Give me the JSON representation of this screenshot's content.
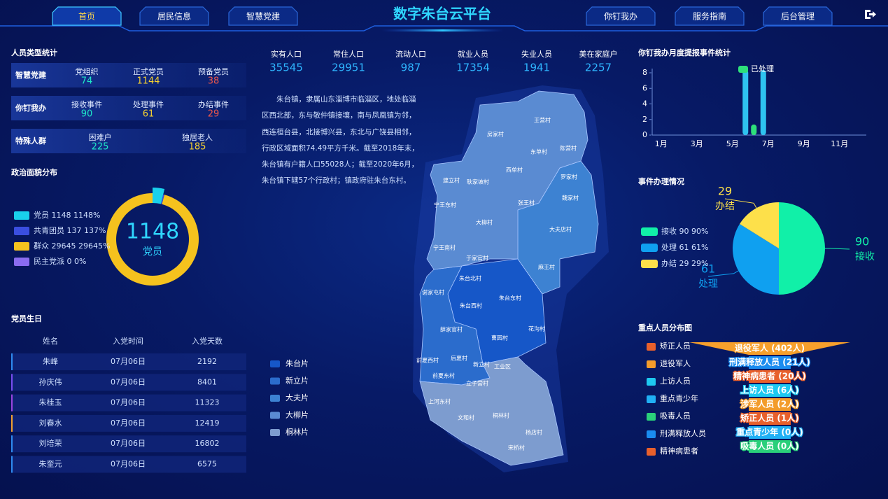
{
  "nav": {
    "left": [
      "首页",
      "居民信息",
      "智慧党建"
    ],
    "right": [
      "你钉我办",
      "服务指南",
      "后台管理"
    ]
  },
  "title": "数字朱台云平台",
  "person_stats": {
    "title": "人员类型统计",
    "rows": [
      {
        "label": "智慧党建",
        "items": [
          {
            "name": "党组织",
            "value": 74
          },
          {
            "name": "正式党员",
            "value": 1144
          },
          {
            "name": "预备党员",
            "value": 38
          }
        ]
      },
      {
        "label": "你钉我办",
        "items": [
          {
            "name": "接收事件",
            "value": 90
          },
          {
            "name": "处理事件",
            "value": 61
          },
          {
            "name": "办结事件",
            "value": 29
          }
        ]
      },
      {
        "label": "特殊人群",
        "items": [
          {
            "name": "困难户",
            "value": 225
          },
          {
            "name": "独居老人",
            "value": 185
          }
        ]
      }
    ]
  },
  "political": {
    "title": "政治面貌分布",
    "chart": {
      "type": "donut",
      "categories": [
        "党员",
        "共青团员",
        "群众",
        "民主党派"
      ],
      "values": [
        1148,
        137,
        29645,
        0
      ],
      "value_labels": [
        "1148%",
        "137%",
        "29645%",
        "0%"
      ],
      "colors": [
        "#19d0ec",
        "#3a4ee0",
        "#f5c21e",
        "#8a6cf0"
      ]
    }
  },
  "birthday": {
    "title": "党员生日",
    "columns": [
      "姓名",
      "入党时间",
      "入党天数"
    ],
    "rows": [
      [
        "朱峰",
        "07月06日",
        2192
      ],
      [
        "孙庆伟",
        "07月06日",
        8401
      ],
      [
        "朱桂玉",
        "07月06日",
        11323
      ],
      [
        "刘春水",
        "07月06日",
        12419
      ],
      [
        "刘培荣",
        "07月06日",
        16802
      ],
      [
        "朱奎元",
        "07月06日",
        6575
      ]
    ]
  },
  "population": [
    {
      "name": "实有人口",
      "value": 35545
    },
    {
      "name": "常住人口",
      "value": 29951
    },
    {
      "name": "流动人口",
      "value": 987
    },
    {
      "name": "就业人员",
      "value": 17354
    },
    {
      "name": "失业人员",
      "value": 1941
    },
    {
      "name": "美在家庭户",
      "value": 2257
    }
  ],
  "intro": "朱台镇，隶属山东淄博市临淄区，地处临淄区西北部，东与敬仲镇接壤，南与凤凰镇为邻，西连桓台县，北接博兴县，东北与广饶县相邻，行政区域面积74.49平方千米。截至2018年末，朱台镇有户籍人口55028人；截至2020年6月，朱台镇下辖57个行政村；镇政府驻朱台东村。",
  "map": {
    "legend": [
      {
        "name": "朱台片",
        "color": "#1657c8"
      },
      {
        "name": "新立片",
        "color": "#2b6ccc"
      },
      {
        "name": "大夫片",
        "color": "#3d82d2"
      },
      {
        "name": "大柳片",
        "color": "#5a8bd2"
      },
      {
        "name": "桐林片",
        "color": "#7d9ccf"
      }
    ],
    "villages": [
      "王营村",
      "房家村",
      "东单村",
      "陈营村",
      "建立村",
      "耿家坡村",
      "西单村",
      "罗家村",
      "宁王东村",
      "张王村",
      "魏家村",
      "大柳村",
      "大夫店村",
      "宁王南村",
      "于家官村",
      "麻王村",
      "朱台北村",
      "谢家屯村",
      "朱台西村",
      "朱台东村",
      "薛家官村",
      "花沟村",
      "曹园村",
      "前夏西村",
      "后夏村",
      "新立村",
      "工业区",
      "前夏东村",
      "立子营村",
      "上河东村",
      "文和村",
      "桐林村",
      "杨店村",
      "宋桥村"
    ]
  },
  "monthly": {
    "title": "你钉我办月度提报事件统计",
    "chart": {
      "type": "bar",
      "categories": [
        "1月",
        null,
        "3月",
        null,
        "5月",
        null,
        "7月",
        null,
        "9月",
        null,
        "11月",
        null
      ],
      "series": [
        {
          "color": "#2ec3f0",
          "values": [
            0,
            0,
            0,
            0,
            0,
            8,
            8,
            0,
            0,
            0,
            0,
            0
          ]
        },
        {
          "name": "已处理",
          "color": "#2ee07a",
          "values": [
            0,
            0,
            0,
            0,
            0,
            1,
            0,
            0,
            0,
            0,
            0,
            0
          ]
        }
      ],
      "ylim": [
        0,
        8
      ],
      "yticks": [
        0,
        2,
        4,
        6,
        8
      ]
    }
  },
  "events": {
    "title": "事件办理情况",
    "chart": {
      "type": "pie",
      "categories": [
        "接收",
        "处理",
        "办结"
      ],
      "values": [
        90,
        61,
        29
      ],
      "value_labels": [
        "90%",
        "61%",
        "29%"
      ],
      "colors": [
        "#11f0a8",
        "#0fa0f0",
        "#fde04a"
      ]
    }
  },
  "key_persons": {
    "title": "重点人员分布图",
    "legend": [
      {
        "name": "矫正人员",
        "color": "#e8602c"
      },
      {
        "name": "退役军人",
        "color": "#f39c2b"
      },
      {
        "name": "上访人员",
        "color": "#1ec8f0"
      },
      {
        "name": "重点青少年",
        "color": "#20b0f5"
      },
      {
        "name": "吸毒人员",
        "color": "#2ad07a"
      },
      {
        "name": "刑满释放人员",
        "color": "#1a8cf0"
      },
      {
        "name": "精神病患者",
        "color": "#e8602c"
      }
    ],
    "chart": {
      "type": "funnel",
      "categories": [
        "退役军人",
        "刑满释放人员",
        "精神病患者",
        "上访人员",
        "涉军人员",
        "矫正人员",
        "重点青少年",
        "吸毒人员"
      ],
      "values": [
        402,
        21,
        20,
        6,
        2,
        1,
        0,
        0
      ],
      "value_labels": [
        "退役军人 (402人)",
        "刑满释放人员 (21人)",
        "精神病患者 (20人)",
        "上访人员 (6人)",
        "涉军人员 (2人)",
        "矫正人员 (1人)",
        "重点青少年 (0人)",
        "吸毒人员 (0人)"
      ],
      "colors": [
        "#f7a02c",
        "#1a8cf0",
        "#e8602c",
        "#1ec8f0",
        "#f39c2b",
        "#e8602c",
        "#20b0f5",
        "#2ad07a"
      ]
    }
  }
}
